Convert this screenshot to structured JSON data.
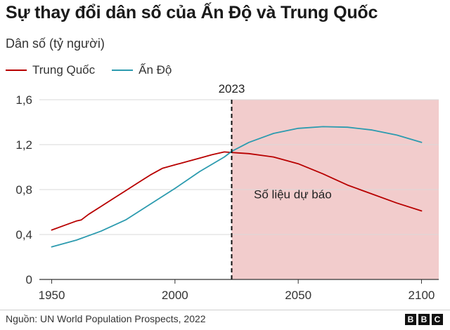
{
  "title": "Sự thay đổi dân số của Ấn Độ và Trung Quốc",
  "subtitle": "Dân số (tỷ người)",
  "source": "Nguồn: UN World Population Prospects, 2022",
  "logo": [
    "B",
    "B",
    "C"
  ],
  "chart_data": {
    "type": "line",
    "ylabel": "Dân số (tỷ người)",
    "xlim": [
      1945,
      2107
    ],
    "ylim": [
      0,
      1.6
    ],
    "x_ticks": [
      1950,
      2000,
      2050,
      2100
    ],
    "y_ticks": [
      {
        "value": 0,
        "label": "0"
      },
      {
        "value": 0.4,
        "label": "0,4"
      },
      {
        "value": 0.8,
        "label": "0,8"
      },
      {
        "value": 1.2,
        "label": "1,2"
      },
      {
        "value": 1.6,
        "label": "1,6"
      }
    ],
    "grid": true,
    "legend_position": "top-left",
    "series": [
      {
        "name": "Trung Quốc",
        "color": "#b80000",
        "x": [
          1950,
          1955,
          1960,
          1962,
          1965,
          1970,
          1975,
          1980,
          1985,
          1990,
          1995,
          2000,
          2005,
          2010,
          2015,
          2020,
          2023,
          2030,
          2040,
          2050,
          2060,
          2070,
          2080,
          2090,
          2100
        ],
        "y": [
          0.44,
          0.48,
          0.52,
          0.53,
          0.58,
          0.65,
          0.72,
          0.79,
          0.86,
          0.93,
          0.99,
          1.02,
          1.05,
          1.08,
          1.11,
          1.135,
          1.13,
          1.12,
          1.09,
          1.03,
          0.94,
          0.84,
          0.76,
          0.68,
          0.61
        ]
      },
      {
        "name": "Ấn Độ",
        "color": "#2c9baf",
        "x": [
          1950,
          1960,
          1970,
          1980,
          1990,
          2000,
          2010,
          2020,
          2023,
          2030,
          2040,
          2050,
          2060,
          2070,
          2080,
          2090,
          2100
        ],
        "y": [
          0.29,
          0.35,
          0.43,
          0.53,
          0.67,
          0.81,
          0.96,
          1.09,
          1.14,
          1.22,
          1.3,
          1.345,
          1.36,
          1.355,
          1.33,
          1.285,
          1.22
        ]
      }
    ],
    "annotations": {
      "marker_year": 2023,
      "marker_label": "2023",
      "forecast_start": 2023,
      "forecast_label": "Số liệu dự báo",
      "forecast_color": "#f2cccc"
    }
  }
}
